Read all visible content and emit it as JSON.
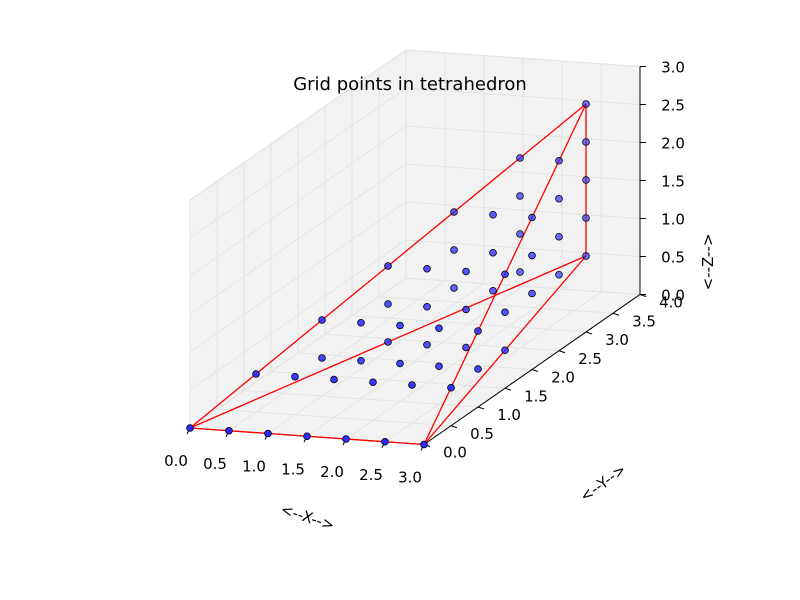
{
  "chart_data": {
    "type": "scatter",
    "subtype": "3d-scatter-with-wireframe",
    "title": "Grid points in tetrahedron",
    "xlabel": "<--X-->",
    "ylabel": "<--Y-->",
    "zlabel": "<--Z-->",
    "xlim": [
      0,
      3
    ],
    "ylim": [
      0,
      4
    ],
    "zlim": [
      0,
      3
    ],
    "x_ticks": [
      "0.0",
      "0.5",
      "1.0",
      "1.5",
      "2.0",
      "2.5",
      "3.0"
    ],
    "y_ticks": [
      "0.0",
      "0.5",
      "1.0",
      "1.5",
      "2.0",
      "2.5",
      "3.0",
      "3.5",
      "4.0"
    ],
    "z_ticks": [
      "0.0",
      "0.5",
      "1.0",
      "1.5",
      "2.0",
      "2.5",
      "3.0"
    ],
    "grid": true,
    "vertices": [
      [
        0,
        0,
        0
      ],
      [
        3,
        0,
        0
      ],
      [
        3,
        3,
        1
      ],
      [
        3,
        3,
        3
      ]
    ],
    "edges": [
      [
        0,
        1
      ],
      [
        0,
        2
      ],
      [
        0,
        3
      ],
      [
        1,
        2
      ],
      [
        1,
        3
      ],
      [
        2,
        3
      ]
    ],
    "grid_step": [
      0.5,
      0.5,
      0.5
    ],
    "colors": {
      "points": "#2b2bff",
      "edges": "#ff0000",
      "pane": "#f2f2f2",
      "grid": "#e3e3e3"
    }
  }
}
